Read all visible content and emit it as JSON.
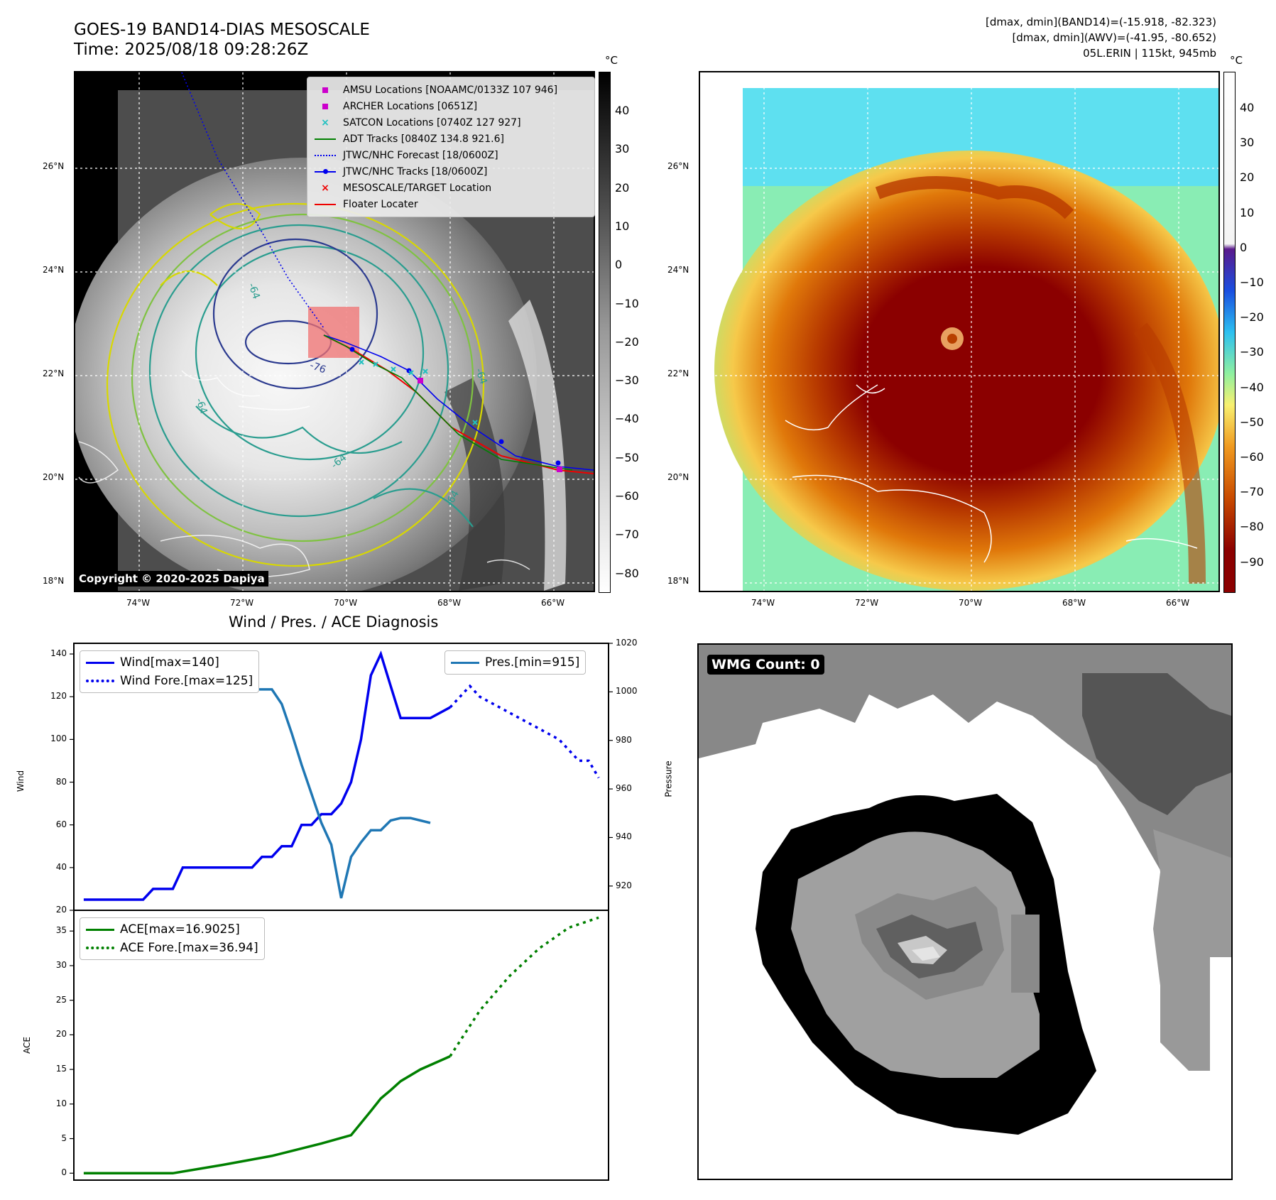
{
  "header": {
    "title_line1": "GOES-19 BAND14-DIAS MESOSCALE",
    "title_line2": "Time: 2025/08/18 09:28:26Z",
    "info_line1": "[dmax, dmin](BAND14)=(-15.918, -82.323)",
    "info_line2": "[dmax, dmin](AWV)=(-41.95, -80.652)",
    "info_line3": "05L.ERIN | 115kt, 945mb"
  },
  "map": {
    "lat_labels": [
      "26°N",
      "24°N",
      "22°N",
      "20°N",
      "18°N"
    ],
    "lon_labels": [
      "74°W",
      "72°W",
      "70°W",
      "68°W",
      "66°W"
    ],
    "copyright": "Copyright © 2020-2025 Dapiya",
    "contour_labels": [
      "-64",
      "-64",
      "-76",
      "-64",
      "-64",
      "-64"
    ],
    "colors": {
      "storm_box": "#f07070",
      "coast": "#ffffff",
      "grid": "#ffffff"
    }
  },
  "left_colorbar": {
    "unit": "°C",
    "ticks": [
      "40",
      "30",
      "20",
      "10",
      "0",
      "−10",
      "−20",
      "−30",
      "−40",
      "−50",
      "−60",
      "−70",
      "−80"
    ]
  },
  "right_colorbar": {
    "unit": "°C",
    "ticks": [
      "40",
      "30",
      "20",
      "10",
      "0",
      "−10",
      "−20",
      "−30",
      "−40",
      "−50",
      "−60",
      "−70",
      "−80",
      "−90"
    ]
  },
  "map_legend": {
    "items": [
      {
        "label": "AMSU Locations [NOAAMC/0133Z 107 946]",
        "symbol": "square",
        "color": "#cc00cc"
      },
      {
        "label": "ARCHER Locations [0651Z]",
        "symbol": "square",
        "color": "#cc00cc"
      },
      {
        "label": "SATCON Locations [0740Z 127 927]",
        "symbol": "x",
        "color": "#20c0c0"
      },
      {
        "label": "ADT Tracks [0840Z 134.8 921.6]",
        "symbol": "line",
        "color": "#008000"
      },
      {
        "label": "JTWC/NHC Forecast [18/0600Z]",
        "symbol": "dotted",
        "color": "#0000ee"
      },
      {
        "label": "JTWC/NHC Tracks [18/0600Z]",
        "symbol": "line-dot",
        "color": "#0000ee"
      },
      {
        "label": "MESOSCALE/TARGET Location",
        "symbol": "x",
        "color": "#ee0000"
      },
      {
        "label": "Floater Locater",
        "symbol": "line",
        "color": "#ee0000"
      }
    ]
  },
  "diagnosis": {
    "title": "Wind / Pres. / ACE Diagnosis",
    "wind_ylabel": "Wind",
    "pressure_ylabel": "Pressure",
    "ace_ylabel": "ACE",
    "wind_ticks": [
      "140",
      "120",
      "100",
      "80",
      "60",
      "40",
      "20"
    ],
    "pressure_ticks": [
      "1020",
      "1000",
      "980",
      "960",
      "940",
      "920"
    ],
    "ace_ticks": [
      "35",
      "30",
      "25",
      "20",
      "15",
      "10",
      "5",
      "0"
    ],
    "legend_wind": "Wind[max=140]",
    "legend_wind_fore": "Wind Fore.[max=125]",
    "legend_pres": "Pres.[min=915]",
    "legend_ace": "ACE[max=16.9025]",
    "legend_ace_fore": "ACE Fore.[max=36.94]"
  },
  "wmg": {
    "label": "WMG Count: 0"
  },
  "chart_data": [
    {
      "type": "line",
      "title": "Wind / Pres. / ACE Diagnosis",
      "ylabel": "Wind",
      "ylim": [
        20,
        145
      ],
      "y2label": "Pressure",
      "y2lim": [
        910,
        1020
      ],
      "xlim": [
        0,
        54
      ],
      "series": [
        {
          "name": "Wind[max=140]",
          "axis": "left",
          "color": "#0000ee",
          "style": "solid",
          "x": [
            1,
            7,
            8,
            10,
            11,
            12,
            16,
            18,
            19,
            20,
            21,
            22,
            23,
            24,
            25,
            26,
            27,
            28,
            29,
            30,
            31,
            32,
            33,
            34,
            36,
            38
          ],
          "y": [
            25,
            25,
            30,
            30,
            40,
            40,
            40,
            40,
            45,
            45,
            50,
            50,
            60,
            60,
            65,
            65,
            70,
            80,
            100,
            130,
            140,
            125,
            110,
            110,
            110,
            115
          ]
        },
        {
          "name": "Wind Fore.[max=125]",
          "axis": "left",
          "color": "#0000ee",
          "style": "dotted",
          "x": [
            38,
            40,
            41,
            43,
            45,
            47,
            49,
            50,
            51,
            52,
            53
          ],
          "y": [
            115,
            125,
            120,
            115,
            110,
            105,
            100,
            95,
            90,
            90,
            82
          ]
        },
        {
          "name": "Pres.[min=915]",
          "axis": "right",
          "color": "#1f77b4",
          "style": "solid",
          "x": [
            1,
            2,
            3,
            4,
            5,
            6,
            7,
            8,
            9,
            10,
            11,
            12,
            13,
            14,
            15,
            16,
            17,
            18,
            19,
            20,
            21,
            22,
            23,
            24,
            25,
            26,
            27,
            28,
            29,
            30,
            31,
            32,
            33,
            34,
            35,
            36
          ],
          "y": [
            1015,
            1015,
            1010,
            1009,
            1008,
            1008,
            1008,
            1007,
            1007,
            1006,
            1006,
            1006,
            1006,
            1005,
            1005,
            1002,
            1001,
            1001,
            1001,
            1001,
            995,
            983,
            970,
            958,
            946,
            937,
            915,
            932,
            938,
            943,
            943,
            947,
            948,
            948,
            947,
            946
          ]
        }
      ]
    },
    {
      "type": "line",
      "ylabel": "ACE",
      "ylim": [
        -1,
        38
      ],
      "xlim": [
        0,
        54
      ],
      "series": [
        {
          "name": "ACE[max=16.9025]",
          "color": "#008000",
          "style": "solid",
          "x": [
            1,
            10,
            15,
            20,
            25,
            28,
            30,
            31,
            32,
            33,
            35,
            38
          ],
          "y": [
            0,
            0,
            1.2,
            2.5,
            4.3,
            5.5,
            9,
            10.8,
            12,
            13.3,
            15,
            16.9
          ]
        },
        {
          "name": "ACE Fore.[max=36.94]",
          "color": "#008000",
          "style": "dotted",
          "x": [
            38,
            41,
            44,
            47,
            50,
            53
          ],
          "y": [
            16.9,
            23.5,
            28.5,
            32.5,
            35.5,
            36.94
          ]
        }
      ]
    }
  ]
}
